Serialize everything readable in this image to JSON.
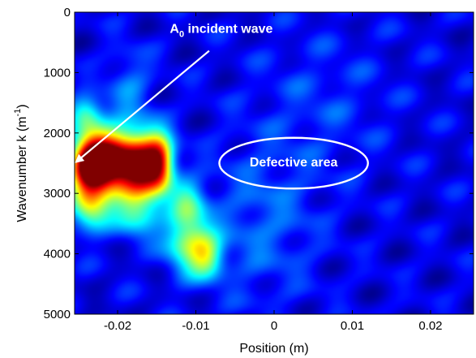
{
  "chart_data": {
    "type": "heatmap",
    "title": "",
    "xlabel": "Position (m)",
    "ylabel": "Wavenumber  k (m",
    "ylabel_sup": "-1",
    "ylabel_close": ")",
    "xlim": [
      -0.0255,
      0.0255
    ],
    "ylim": [
      0,
      5000
    ],
    "y_reversed": true,
    "x_ticks": [
      -0.02,
      -0.01,
      0,
      0.01,
      0.02
    ],
    "x_tick_labels": [
      "-0.02",
      "-0.01",
      "0",
      "0.01",
      "0.02"
    ],
    "y_ticks": [
      0,
      1000,
      2000,
      3000,
      4000,
      5000
    ],
    "y_tick_labels": [
      "0",
      "1000",
      "2000",
      "3000",
      "4000",
      "5000"
    ],
    "colormap": "jet",
    "background_color": "#0a1fb0",
    "hotspots": [
      {
        "x": -0.0235,
        "y": 2550,
        "sx": 0.0018,
        "sy": 330,
        "amp": 1.0
      },
      {
        "x": -0.0205,
        "y": 2480,
        "sx": 0.0022,
        "sy": 360,
        "amp": 0.85
      },
      {
        "x": -0.0165,
        "y": 2520,
        "sx": 0.002,
        "sy": 380,
        "amp": 0.78
      },
      {
        "x": -0.0145,
        "y": 2500,
        "sx": 0.0012,
        "sy": 320,
        "amp": 0.45
      },
      {
        "x": -0.024,
        "y": 1700,
        "sx": 0.0015,
        "sy": 200,
        "amp": 0.35
      },
      {
        "x": -0.0235,
        "y": 3300,
        "sx": 0.0018,
        "sy": 250,
        "amp": 0.38
      },
      {
        "x": -0.0175,
        "y": 3300,
        "sx": 0.002,
        "sy": 300,
        "amp": 0.3
      },
      {
        "x": -0.011,
        "y": 3750,
        "sx": 0.002,
        "sy": 380,
        "amp": 0.42
      },
      {
        "x": -0.0085,
        "y": 4050,
        "sx": 0.0015,
        "sy": 250,
        "amp": 0.34
      },
      {
        "x": -0.011,
        "y": 3100,
        "sx": 0.0015,
        "sy": 250,
        "amp": 0.22
      },
      {
        "x": -0.0185,
        "y": 1200,
        "sx": 0.002,
        "sy": 400,
        "amp": 0.14
      },
      {
        "x": -0.0015,
        "y": 3500,
        "sx": 0.005,
        "sy": 900,
        "amp": 0.12
      },
      {
        "x": 0.006,
        "y": 1500,
        "sx": 0.006,
        "sy": 800,
        "amp": 0.07
      }
    ],
    "annotations": {
      "incident_main": "A",
      "incident_sub": "0",
      "incident_rest": " incident wave",
      "incident_arrow_from": [
        -0.0083,
        640
      ],
      "incident_arrow_to": [
        -0.0253,
        2480
      ],
      "defect_label": "Defective area",
      "defect_center": [
        0.0025,
        2500
      ],
      "defect_radius": [
        0.0095,
        420
      ],
      "annotation_color": "#ffffff"
    }
  }
}
